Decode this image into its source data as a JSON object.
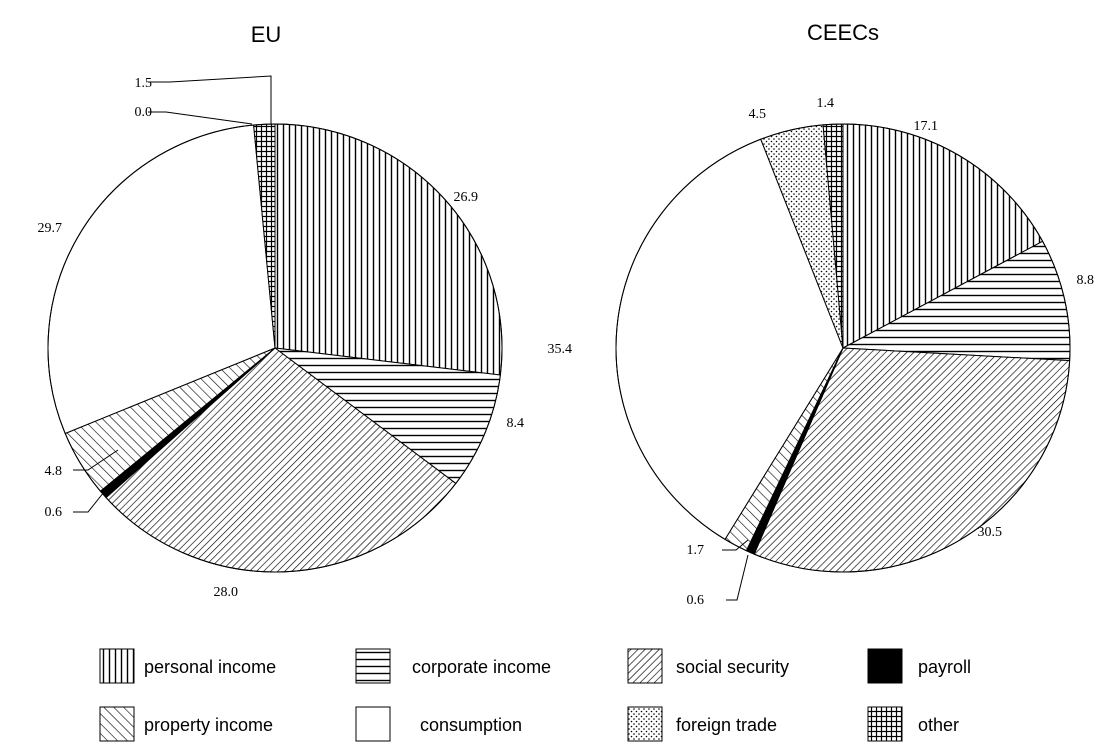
{
  "chart_data": [
    {
      "type": "pie",
      "title": "EU",
      "slices": [
        {
          "label": "personal income",
          "value": 26.9,
          "text": "26.9",
          "pattern": "vertical-lines"
        },
        {
          "label": "corporate income",
          "value": 8.4,
          "text": "8.4",
          "pattern": "horizontal-lines"
        },
        {
          "label": "social security",
          "value": 28.0,
          "text": "28.0",
          "pattern": "diagonal-dense"
        },
        {
          "label": "payroll",
          "value": 0.6,
          "text": "0.6",
          "pattern": "solid-black"
        },
        {
          "label": "property income",
          "value": 4.8,
          "text": "4.8",
          "pattern": "diagonal-wide"
        },
        {
          "label": "consumption",
          "value": 29.7,
          "text": "29.7",
          "pattern": "blank"
        },
        {
          "label": "foreign trade",
          "value": 0.0,
          "text": "0.0",
          "pattern": "dots"
        },
        {
          "label": "other",
          "value": 1.5,
          "text": "1.5",
          "pattern": "grid"
        }
      ]
    },
    {
      "type": "pie",
      "title": "CEECs",
      "slices": [
        {
          "label": "personal income",
          "value": 17.1,
          "text": "17.1",
          "pattern": "vertical-lines"
        },
        {
          "label": "corporate income",
          "value": 8.8,
          "text": "8.8",
          "pattern": "horizontal-lines"
        },
        {
          "label": "social security",
          "value": 30.5,
          "text": "30.5",
          "pattern": "diagonal-dense"
        },
        {
          "label": "payroll",
          "value": 0.6,
          "text": "0.6",
          "pattern": "solid-black"
        },
        {
          "label": "property income",
          "value": 1.7,
          "text": "1.7",
          "pattern": "diagonal-wide"
        },
        {
          "label": "consumption",
          "value": 35.4,
          "text": "35.4",
          "pattern": "blank"
        },
        {
          "label": "foreign trade",
          "value": 4.5,
          "text": "4.5",
          "pattern": "dots"
        },
        {
          "label": "other",
          "value": 1.4,
          "text": "1.4",
          "pattern": "grid"
        }
      ]
    }
  ],
  "legend": {
    "placement": "bottom",
    "entries": [
      {
        "label": "personal income",
        "pattern": "vertical-lines"
      },
      {
        "label": "corporate income",
        "pattern": "horizontal-lines"
      },
      {
        "label": "social security",
        "pattern": "diagonal-dense"
      },
      {
        "label": "payroll",
        "pattern": "solid-black"
      },
      {
        "label": "property income",
        "pattern": "diagonal-wide"
      },
      {
        "label": "consumption",
        "pattern": "blank"
      },
      {
        "label": "foreign trade",
        "pattern": "dots"
      },
      {
        "label": "other",
        "pattern": "grid"
      }
    ]
  }
}
